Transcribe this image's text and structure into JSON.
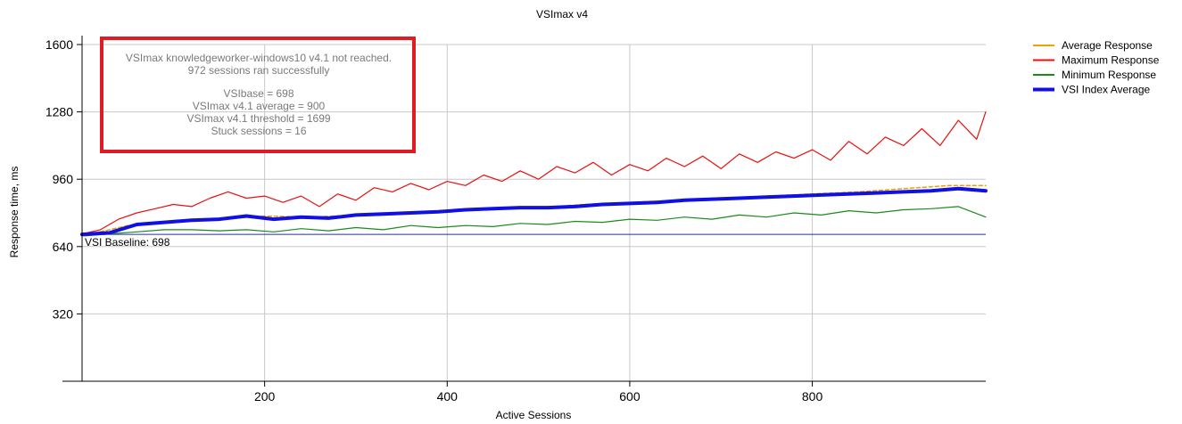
{
  "chart_data": {
    "type": "line",
    "title": "VSImax v4",
    "xlabel": "Active Sessions",
    "ylabel": "Response time, ms",
    "xlim": [
      0,
      990
    ],
    "ylim": [
      0,
      1600
    ],
    "xticks": [
      200,
      400,
      600,
      800
    ],
    "yticks": [
      320,
      640,
      960,
      1280,
      1600
    ],
    "grid": true,
    "legend_position": "top-right",
    "baseline": {
      "value": 698,
      "label": "VSI Baseline: 698",
      "color": "#2a2aa0"
    },
    "annotation_box": {
      "border_color": "#e01b24",
      "lines": [
        "VSImax knowledgeworker-windows10 v4.1 not reached.",
        "972 sessions ran successfully",
        "",
        "VSIbase = 698",
        "VSImax v4.1 average = 900",
        "VSImax v4.1 threshold = 1699",
        "Stuck sessions = 16"
      ]
    },
    "series": [
      {
        "name": "Average Response",
        "color": "#f0a000",
        "width": 1.5,
        "dashed": true,
        "x": [
          0,
          50,
          100,
          150,
          200,
          250,
          300,
          350,
          400,
          450,
          500,
          550,
          600,
          650,
          700,
          750,
          800,
          850,
          900,
          950,
          990
        ],
        "y": [
          690,
          740,
          760,
          770,
          785,
          780,
          790,
          800,
          810,
          815,
          825,
          840,
          850,
          860,
          865,
          880,
          890,
          900,
          915,
          930,
          930
        ]
      },
      {
        "name": "Maximum Response",
        "color": "#e81010",
        "width": 1.2,
        "dashed": false,
        "x": [
          0,
          20,
          40,
          60,
          80,
          100,
          120,
          140,
          160,
          180,
          200,
          220,
          240,
          260,
          280,
          300,
          320,
          340,
          360,
          380,
          400,
          420,
          440,
          460,
          480,
          500,
          520,
          540,
          560,
          580,
          600,
          620,
          640,
          660,
          680,
          700,
          720,
          740,
          760,
          780,
          800,
          820,
          840,
          860,
          880,
          900,
          920,
          940,
          960,
          980,
          990
        ],
        "y": [
          700,
          720,
          770,
          800,
          820,
          840,
          830,
          870,
          900,
          870,
          880,
          850,
          880,
          830,
          890,
          860,
          920,
          900,
          940,
          910,
          950,
          930,
          980,
          950,
          1000,
          960,
          1020,
          990,
          1040,
          980,
          1030,
          1000,
          1060,
          1020,
          1070,
          1010,
          1080,
          1040,
          1090,
          1060,
          1100,
          1050,
          1140,
          1080,
          1160,
          1120,
          1200,
          1120,
          1240,
          1150,
          1280
        ]
      },
      {
        "name": "Minimum Response",
        "color": "#1a8a1a",
        "width": 1.2,
        "dashed": false,
        "x": [
          0,
          30,
          60,
          90,
          120,
          150,
          180,
          210,
          240,
          270,
          300,
          330,
          360,
          390,
          420,
          450,
          480,
          510,
          540,
          570,
          600,
          630,
          660,
          690,
          720,
          750,
          780,
          810,
          840,
          870,
          900,
          930,
          960,
          990
        ],
        "y": [
          690,
          700,
          710,
          720,
          720,
          715,
          720,
          710,
          725,
          715,
          730,
          720,
          740,
          730,
          740,
          735,
          750,
          745,
          760,
          755,
          770,
          765,
          780,
          770,
          790,
          780,
          800,
          790,
          810,
          800,
          815,
          820,
          830,
          780
        ]
      },
      {
        "name": "VSI Index Average",
        "color": "#1010e0",
        "width": 4,
        "dashed": false,
        "x": [
          0,
          30,
          60,
          90,
          120,
          150,
          180,
          210,
          240,
          270,
          300,
          330,
          360,
          390,
          420,
          450,
          480,
          510,
          540,
          570,
          600,
          630,
          660,
          690,
          720,
          750,
          780,
          810,
          840,
          870,
          900,
          930,
          960,
          990
        ],
        "y": [
          698,
          705,
          745,
          755,
          765,
          770,
          785,
          770,
          780,
          775,
          790,
          795,
          800,
          805,
          815,
          820,
          825,
          825,
          830,
          840,
          845,
          850,
          860,
          865,
          870,
          875,
          880,
          885,
          890,
          895,
          900,
          905,
          915,
          905
        ]
      }
    ]
  }
}
